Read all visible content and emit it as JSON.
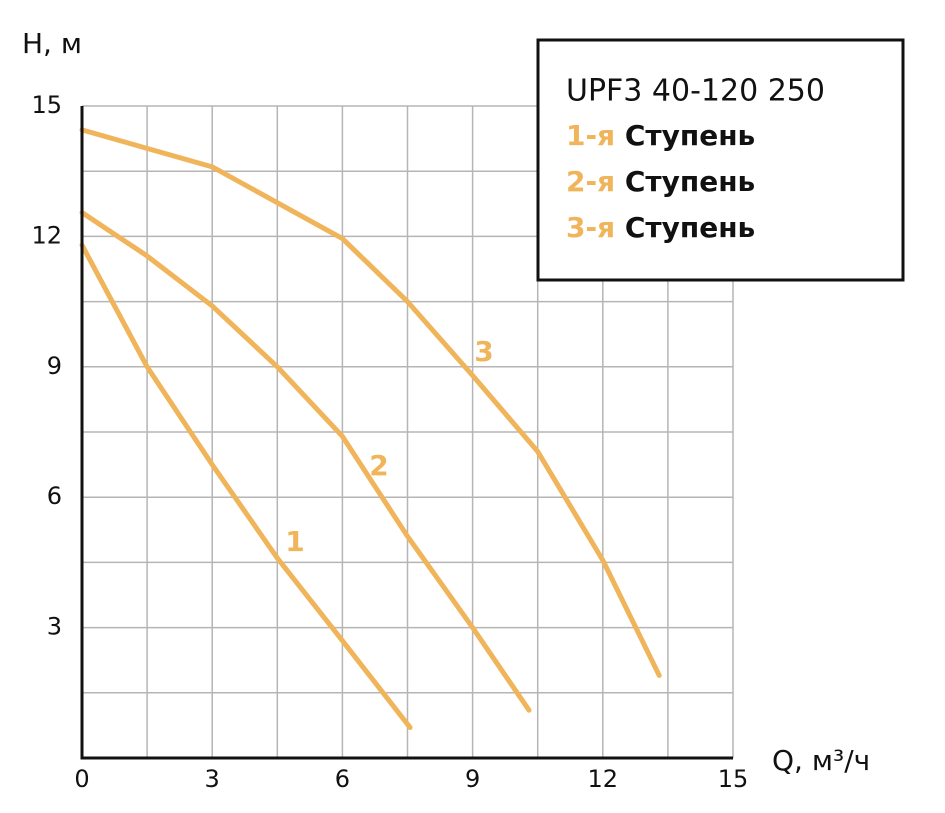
{
  "chart_data": {
    "type": "line",
    "y_label": "H, м",
    "x_label": "Q, м³/ч",
    "legend_title": "UPF3 40-120 250",
    "xlim": [
      0,
      15
    ],
    "ylim": [
      0,
      15
    ],
    "xticks": [
      0,
      3,
      6,
      9,
      12,
      15
    ],
    "yticks": [
      3,
      6,
      9,
      12,
      15
    ],
    "x_minor_grid": [
      1.5,
      4.5,
      7.5,
      10.5,
      13.5
    ],
    "y_minor_grid": [
      1.5,
      4.5,
      7.5,
      10.5,
      13.5
    ],
    "grid": true,
    "legend": "upper right",
    "series": [
      {
        "name": "1-я Ступень",
        "label": "1",
        "color": "#f0b45a",
        "x": [
          0,
          1.5,
          3,
          4.5,
          6,
          7.56
        ],
        "values": [
          11.8,
          9.0,
          6.75,
          4.6,
          2.7,
          0.7
        ]
      },
      {
        "name": "2-я Ступень",
        "label": "2",
        "color": "#f0b45a",
        "x": [
          0,
          1.5,
          3,
          4.5,
          6,
          7.5,
          9,
          10.3
        ],
        "values": [
          12.55,
          11.55,
          10.4,
          9.0,
          7.4,
          5.1,
          3.0,
          1.1
        ]
      },
      {
        "name": "3-я Ступень",
        "label": "3",
        "color": "#f0b45a",
        "x": [
          0,
          3,
          6,
          7.5,
          9,
          10.5,
          12,
          13.3
        ],
        "values": [
          14.45,
          13.6,
          11.95,
          10.5,
          8.8,
          7.05,
          4.55,
          1.9
        ]
      }
    ]
  }
}
